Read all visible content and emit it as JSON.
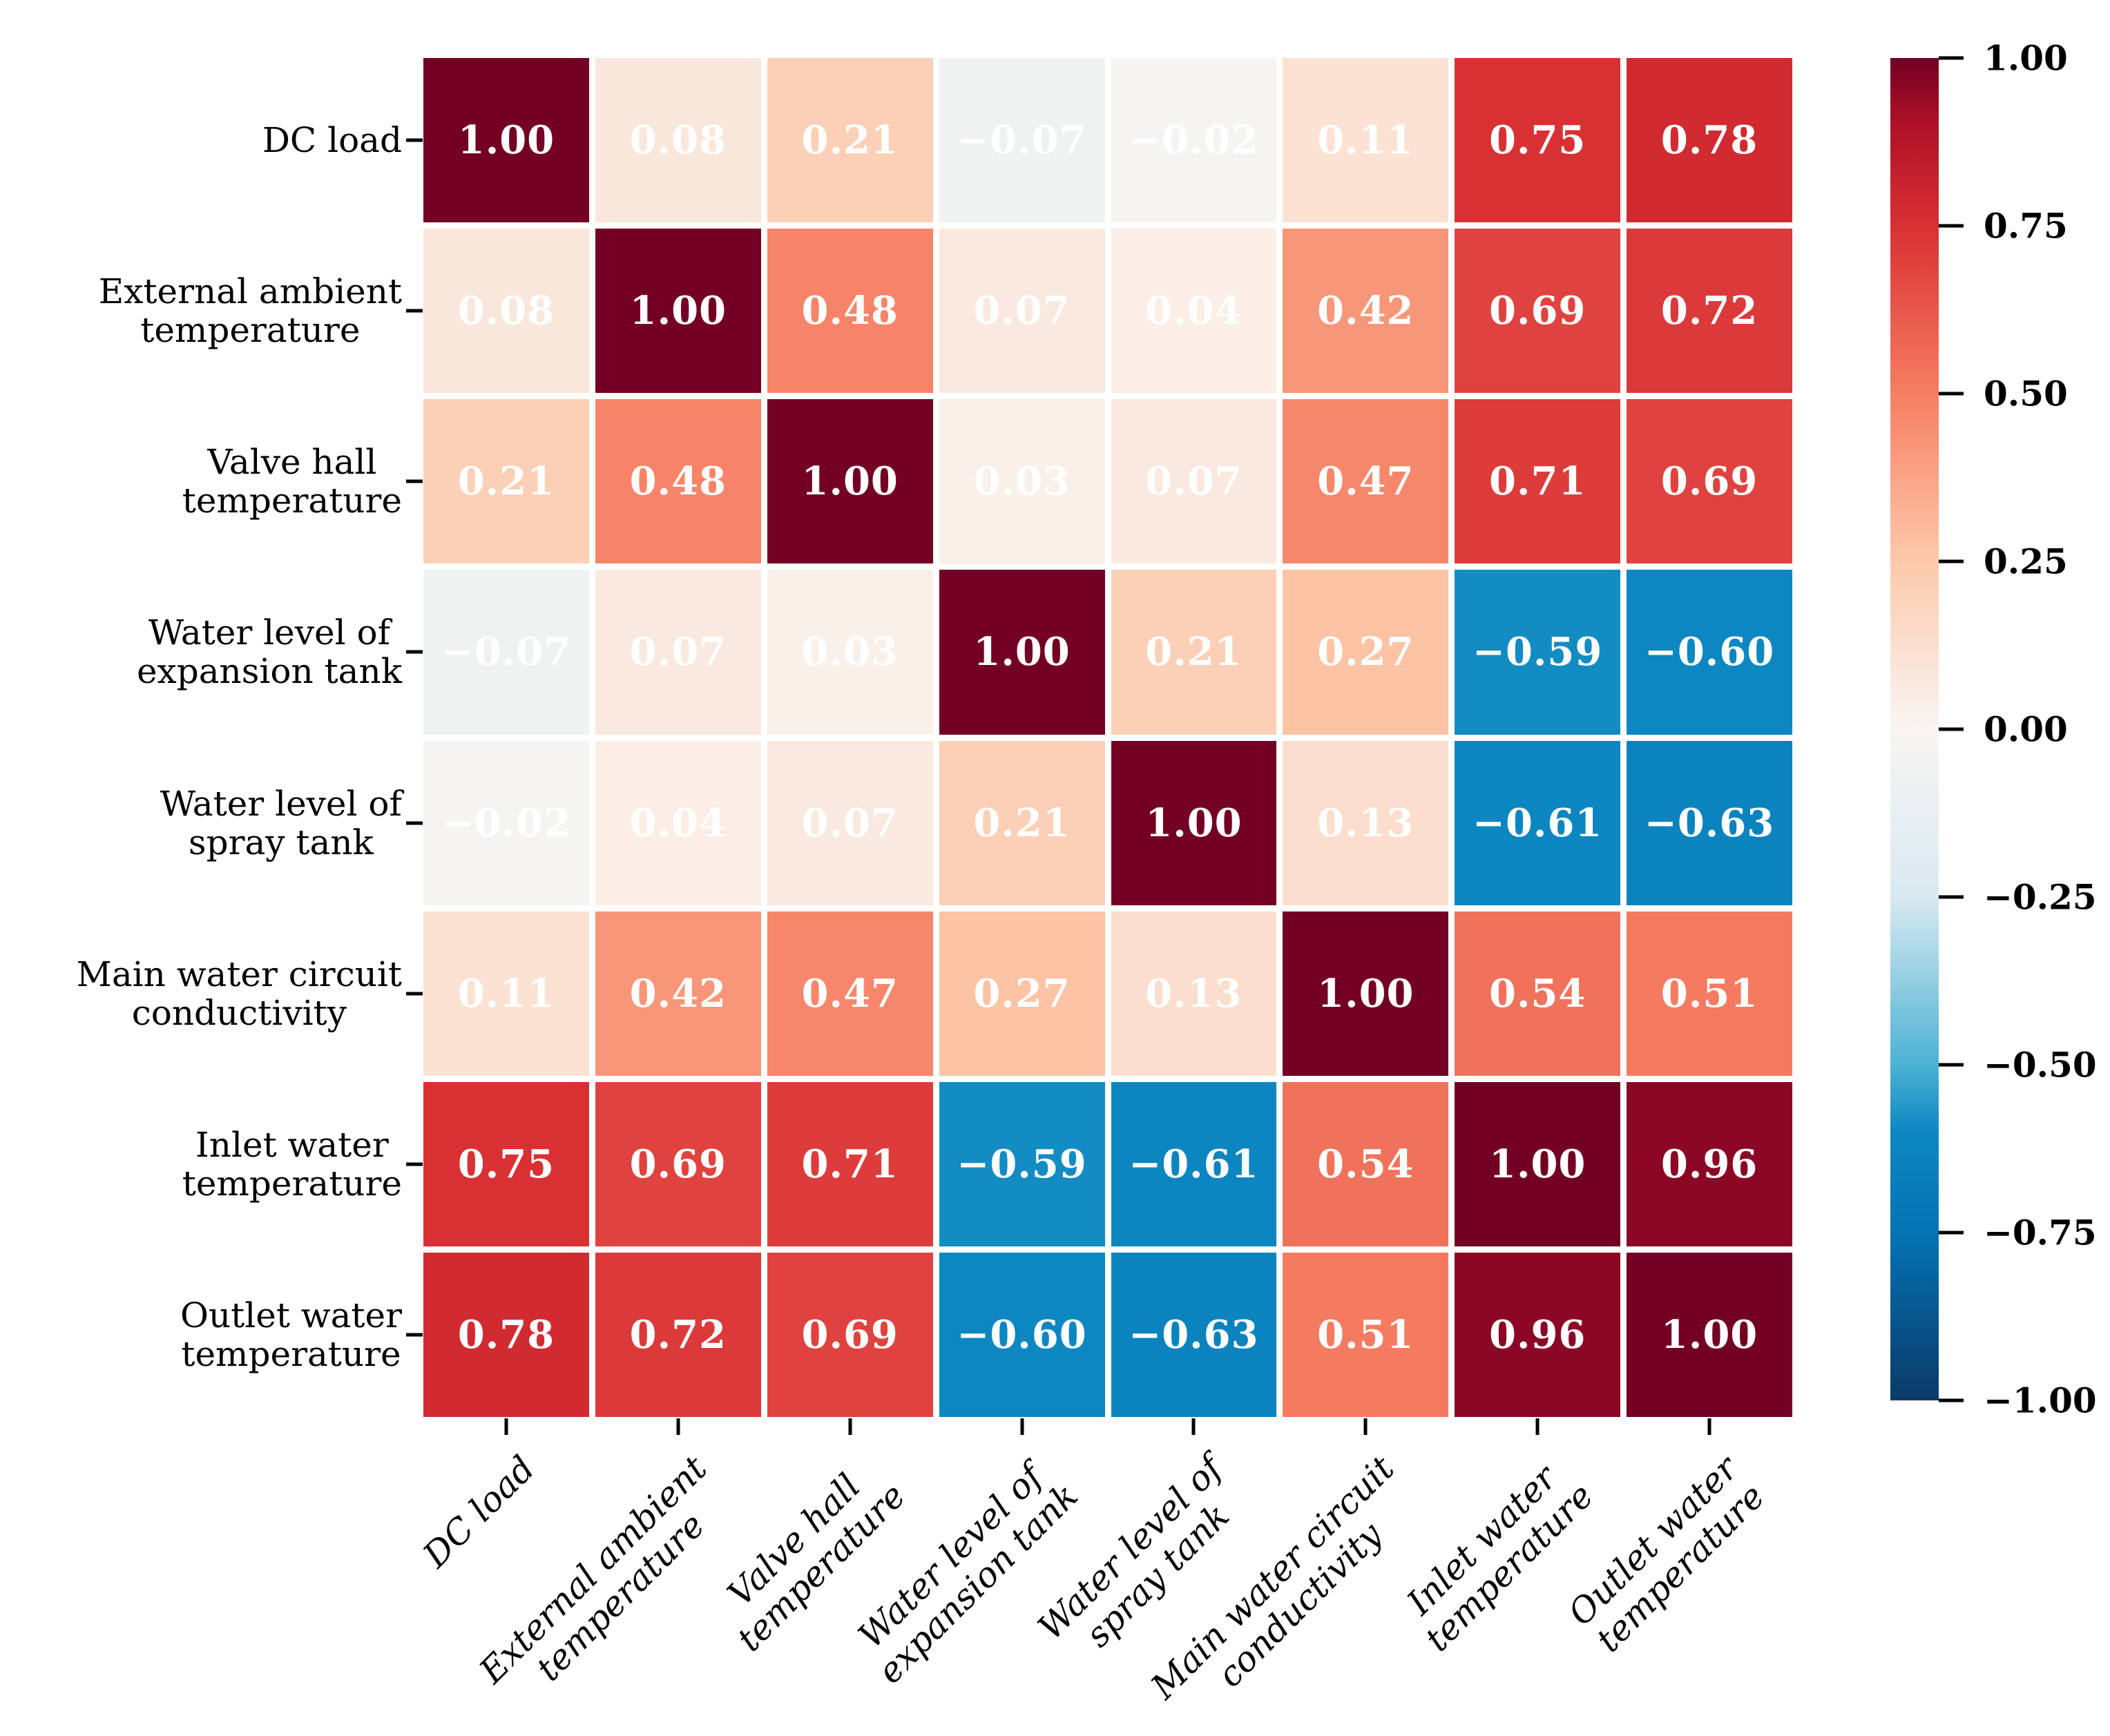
{
  "chart_data": {
    "type": "heatmap",
    "title": "",
    "variables": [
      {
        "label": "DC load",
        "lines": [
          "DC load"
        ]
      },
      {
        "label": "External ambient temperature",
        "lines": [
          "External ambient",
          "temperature"
        ]
      },
      {
        "label": "Valve hall temperature",
        "lines": [
          "Valve hall",
          "temperature"
        ]
      },
      {
        "label": "Water level of expansion tank",
        "lines": [
          "Water level of",
          "expansion tank"
        ]
      },
      {
        "label": "Water level of spray tank",
        "lines": [
          "Water level of",
          "spray tank"
        ]
      },
      {
        "label": "Main water circuit conductivity",
        "lines": [
          "Main water circuit",
          "conductivity"
        ]
      },
      {
        "label": "Inlet water temperature",
        "lines": [
          "Inlet water",
          "temperature"
        ]
      },
      {
        "label": "Outlet water temperature",
        "lines": [
          "Outlet water",
          "temperature"
        ]
      }
    ],
    "matrix": [
      [
        1.0,
        0.08,
        0.21,
        -0.07,
        -0.02,
        0.11,
        0.75,
        0.78
      ],
      [
        0.08,
        1.0,
        0.48,
        0.07,
        0.04,
        0.42,
        0.69,
        0.72
      ],
      [
        0.21,
        0.48,
        1.0,
        0.03,
        0.07,
        0.47,
        0.71,
        0.69
      ],
      [
        -0.07,
        0.07,
        0.03,
        1.0,
        0.21,
        0.27,
        -0.59,
        -0.6
      ],
      [
        -0.02,
        0.04,
        0.07,
        0.21,
        1.0,
        0.13,
        -0.61,
        -0.63
      ],
      [
        0.11,
        0.42,
        0.47,
        0.27,
        0.13,
        1.0,
        0.54,
        0.51
      ],
      [
        0.75,
        0.69,
        0.71,
        -0.59,
        -0.61,
        0.54,
        1.0,
        0.96
      ],
      [
        0.78,
        0.72,
        0.69,
        -0.6,
        -0.63,
        0.51,
        0.96,
        1.0
      ]
    ],
    "matrix_display": [
      [
        "1.00",
        "0.08",
        "0.21",
        "−0.07",
        "−0.02",
        "0.11",
        "0.75",
        "0.78"
      ],
      [
        "0.08",
        "1.00",
        "0.48",
        "0.07",
        "0.04",
        "0.42",
        "0.69",
        "0.72"
      ],
      [
        "0.21",
        "0.48",
        "1.00",
        "0.03",
        "0.07",
        "0.47",
        "0.71",
        "0.69"
      ],
      [
        "−0.07",
        "0.07",
        "0.03",
        "1.00",
        "0.21",
        "0.27",
        "−0.59",
        "−0.60"
      ],
      [
        "−0.02",
        "0.04",
        "0.07",
        "0.21",
        "1.00",
        "0.13",
        "−0.61",
        "−0.63"
      ],
      [
        "0.11",
        "0.42",
        "0.47",
        "0.27",
        "0.13",
        "1.00",
        "0.54",
        "0.51"
      ],
      [
        "0.75",
        "0.69",
        "0.71",
        "−0.59",
        "−0.61",
        "0.54",
        "1.00",
        "0.96"
      ],
      [
        "0.78",
        "0.72",
        "0.69",
        "−0.60",
        "−0.63",
        "0.51",
        "0.96",
        "1.00"
      ]
    ],
    "value_text_color": "#ffffff",
    "axis_text_color": "#000000",
    "grid_gap_color": "#ffffff",
    "colorbar": {
      "vmin": -1.0,
      "vmax": 1.0,
      "ticks": [
        1.0,
        0.75,
        0.5,
        0.25,
        0.0,
        -0.25,
        -0.5,
        -0.75,
        -1.0
      ],
      "tick_labels": [
        "1.00",
        "0.75",
        "0.50",
        "0.25",
        "0.00",
        "−0.25",
        "−0.50",
        "−0.75",
        "−1.00"
      ]
    },
    "colormap_anchors": [
      {
        "v": -1.0,
        "color": "#0b3a68"
      },
      {
        "v": -0.75,
        "color": "#0473b4"
      },
      {
        "v": -0.6,
        "color": "#0d87c1"
      },
      {
        "v": -0.5,
        "color": "#4cb2d4"
      },
      {
        "v": -0.25,
        "color": "#d9e9f1"
      },
      {
        "v": 0.0,
        "color": "#f9f5f3"
      },
      {
        "v": 0.25,
        "color": "#fdc9ab"
      },
      {
        "v": 0.5,
        "color": "#f67e62"
      },
      {
        "v": 0.75,
        "color": "#d93034"
      },
      {
        "v": 0.9,
        "color": "#b01127"
      },
      {
        "v": 1.0,
        "color": "#730024"
      }
    ],
    "legend_position": "right",
    "grid": false
  }
}
